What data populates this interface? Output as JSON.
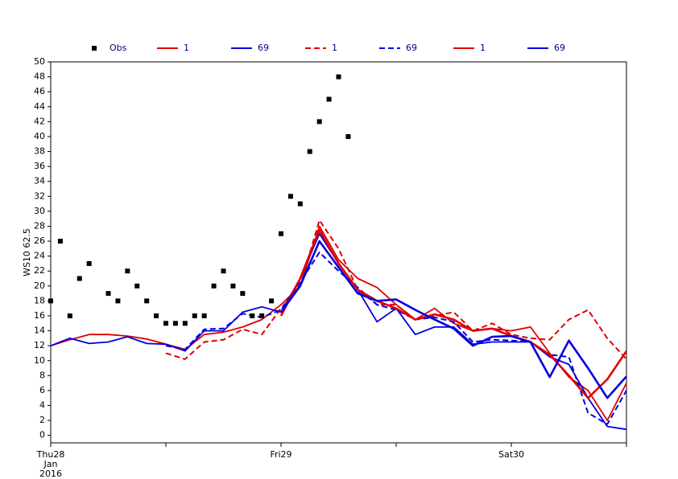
{
  "chart_data": {
    "type": "line",
    "y_label": "WS10 62.5",
    "xlim": [
      0,
      60
    ],
    "xticks": [
      {
        "value": 0,
        "label": "Thu28"
      },
      {
        "value": 12,
        "label": null
      },
      {
        "value": 24,
        "label": "Fri29"
      },
      {
        "value": 36,
        "label": null
      },
      {
        "value": 48,
        "label": "Sat30"
      },
      {
        "value": 60,
        "label": null
      }
    ],
    "x_sublabels": [
      "Jan",
      "2016"
    ],
    "ylim": [
      -1,
      50
    ],
    "yticks": [
      0,
      2,
      4,
      6,
      8,
      10,
      12,
      14,
      16,
      18,
      20,
      22,
      24,
      26,
      28,
      30,
      32,
      34,
      36,
      38,
      40,
      42,
      44,
      46,
      48,
      50
    ],
    "observations": {
      "name": "Obs",
      "color": "#000000",
      "x": [
        0,
        1,
        2,
        3,
        4,
        6,
        7,
        8,
        9,
        10,
        11,
        12,
        13,
        14,
        15,
        16,
        17,
        18,
        19,
        20,
        21,
        22,
        23,
        24,
        25,
        26,
        27,
        28,
        29,
        30,
        31
      ],
      "values": [
        18,
        26,
        16,
        21,
        23,
        19,
        18,
        22,
        20,
        18,
        16,
        15,
        15,
        15,
        16,
        16,
        20,
        22,
        20,
        19,
        16,
        16,
        18,
        27,
        32,
        31,
        38,
        42,
        45,
        48,
        40
      ]
    },
    "series": [
      {
        "name": "1",
        "color": "#e00000",
        "style": "solid",
        "width": 1.8,
        "x": [
          0,
          2,
          4,
          6,
          8,
          10,
          12,
          14,
          16,
          18,
          20,
          22,
          24,
          26,
          28,
          30,
          32,
          34,
          36,
          38,
          40,
          42,
          44,
          46,
          48,
          50,
          52,
          54,
          56,
          58,
          60
        ],
        "values": [
          12,
          12.8,
          13.5,
          13.5,
          13.3,
          12.9,
          12.2,
          11.5,
          13.5,
          13.8,
          14.5,
          15.5,
          17.5,
          20,
          28,
          23.5,
          21,
          19.8,
          17.5,
          15.5,
          17,
          15,
          14,
          14.3,
          14,
          14.5,
          11,
          7.8,
          6,
          2,
          7
        ]
      },
      {
        "name": "69",
        "color": "#0000e0",
        "style": "solid",
        "width": 1.8,
        "x": [
          0,
          2,
          4,
          6,
          8,
          10,
          12,
          14,
          16,
          18,
          20,
          22,
          24,
          26,
          28,
          30,
          32,
          34,
          36,
          38,
          40,
          42,
          44,
          46,
          48,
          50,
          52,
          54,
          56,
          58,
          60
        ],
        "values": [
          12,
          13,
          12.3,
          12.5,
          13.2,
          12.3,
          12.2,
          11.3,
          14,
          14,
          16.5,
          17.2,
          16.5,
          21,
          27,
          23,
          19.5,
          15.2,
          17,
          13.5,
          14.5,
          14.5,
          12.2,
          12.5,
          12.5,
          12.5,
          10.5,
          9.5,
          5,
          1.2,
          0.8
        ]
      },
      {
        "name": "1",
        "color": "#e00000",
        "style": "dashed",
        "width": 2,
        "x": [
          12,
          14,
          16,
          18,
          20,
          22,
          24,
          26,
          28,
          30,
          32,
          34,
          36,
          38,
          40,
          42,
          44,
          46,
          48,
          50,
          52,
          54,
          56,
          58,
          60
        ],
        "values": [
          11,
          10.2,
          12.5,
          12.8,
          14.2,
          13.5,
          17,
          20,
          28.8,
          25,
          19.5,
          17.5,
          17.5,
          15.5,
          16,
          16.5,
          14,
          15,
          13.5,
          13,
          12.8,
          15.5,
          16.8,
          13,
          10.2
        ]
      },
      {
        "name": "69",
        "color": "#0000e0",
        "style": "dashed",
        "width": 2,
        "x": [
          12,
          14,
          16,
          18,
          20,
          22,
          24,
          26,
          28,
          30,
          32,
          34,
          36,
          38,
          40,
          42,
          44,
          46,
          48,
          50,
          52,
          54,
          56,
          58,
          60
        ],
        "values": [
          12,
          11.5,
          14.2,
          14.3,
          16.3,
          15.8,
          16.8,
          20.5,
          24.5,
          22,
          19.8,
          17.5,
          16.8,
          15.5,
          15.8,
          15.2,
          12.5,
          12.8,
          12.7,
          12.5,
          10.8,
          10.5,
          3,
          1.5,
          6
        ]
      },
      {
        "name": "1",
        "color": "#e00000",
        "style": "solid",
        "width": 2.6,
        "x": [
          24,
          26,
          28,
          30,
          32,
          34,
          36,
          38,
          40,
          42,
          44,
          46,
          48,
          50,
          52,
          54,
          56,
          58,
          60
        ],
        "values": [
          16,
          21,
          27.5,
          23,
          19.5,
          18,
          17,
          15.5,
          16.2,
          15.5,
          14,
          14.3,
          13.3,
          12.5,
          10.8,
          8,
          5,
          7.5,
          11.3
        ]
      },
      {
        "name": "69",
        "color": "#0000e0",
        "style": "solid",
        "width": 2.6,
        "x": [
          24,
          26,
          28,
          30,
          32,
          34,
          36,
          38,
          40,
          42,
          44,
          46,
          48,
          50,
          52,
          54,
          56,
          58,
          60
        ],
        "values": [
          16.5,
          20,
          26,
          22.5,
          19,
          18,
          18.2,
          16.8,
          15.5,
          14.3,
          12,
          13.2,
          13.3,
          12.5,
          7.8,
          12.7,
          9,
          5,
          7.9
        ]
      }
    ]
  }
}
